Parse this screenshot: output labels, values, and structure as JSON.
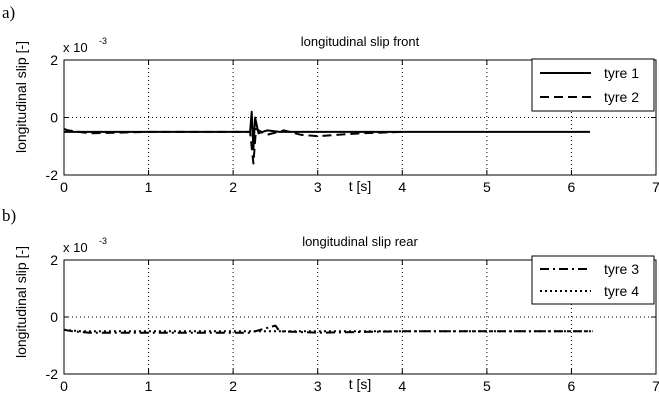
{
  "chart_data": [
    {
      "panel_label": "a)",
      "type": "line",
      "title": "longitudinal slip front",
      "xlabel": "t [s]",
      "ylabel": "longitudinal slip [-]",
      "y_exponent_label": "x 10",
      "y_exponent": "-3",
      "xlim": [
        0,
        7
      ],
      "ylim": [
        -2,
        2
      ],
      "x_ticks": [
        "0",
        "1",
        "2",
        "3",
        "4",
        "5",
        "6",
        "7"
      ],
      "y_ticks": [
        "2",
        "0",
        "-2"
      ],
      "grid": true,
      "legend_position": "top-right",
      "series": [
        {
          "name": "tyre 1",
          "style": "solid",
          "points": [
            [
              0,
              -0.5
            ],
            [
              2.2,
              -0.5
            ],
            [
              2.22,
              0.2
            ],
            [
              2.24,
              -1.1
            ],
            [
              2.26,
              0.0
            ],
            [
              2.3,
              -0.55
            ],
            [
              2.4,
              -0.45
            ],
            [
              2.55,
              -0.5
            ],
            [
              6.22,
              -0.5
            ]
          ]
        },
        {
          "name": "tyre 2",
          "style": "dashed",
          "points": [
            [
              0,
              -0.4
            ],
            [
              0.05,
              -0.45
            ],
            [
              0.3,
              -0.55
            ],
            [
              1.0,
              -0.5
            ],
            [
              2.2,
              -0.5
            ],
            [
              2.24,
              -1.6
            ],
            [
              2.27,
              -0.4
            ],
            [
              2.4,
              -0.6
            ],
            [
              2.6,
              -0.45
            ],
            [
              2.8,
              -0.6
            ],
            [
              3.0,
              -0.65
            ],
            [
              3.5,
              -0.55
            ],
            [
              4.0,
              -0.5
            ]
          ]
        }
      ]
    },
    {
      "panel_label": "b)",
      "type": "line",
      "title": "longitudinal slip rear",
      "xlabel": "t [s]",
      "ylabel": "longitudinal slip [-]",
      "y_exponent_label": "x 10",
      "y_exponent": "-3",
      "xlim": [
        0,
        7
      ],
      "ylim": [
        -2,
        2
      ],
      "x_ticks": [
        "0",
        "1",
        "2",
        "3",
        "4",
        "5",
        "6",
        "7"
      ],
      "y_ticks": [
        "2",
        "0",
        "-2"
      ],
      "grid": true,
      "legend_position": "top-right",
      "series": [
        {
          "name": "tyre 3",
          "style": "dashdot",
          "points": [
            [
              0,
              -0.45
            ],
            [
              0.1,
              -0.5
            ],
            [
              0.3,
              -0.55
            ],
            [
              2.2,
              -0.55
            ],
            [
              2.5,
              -0.3
            ],
            [
              2.55,
              -0.5
            ],
            [
              3.0,
              -0.55
            ],
            [
              4.0,
              -0.5
            ],
            [
              6.25,
              -0.5
            ]
          ]
        },
        {
          "name": "tyre 4",
          "style": "dotted",
          "points": [
            [
              0,
              -0.45
            ],
            [
              0.2,
              -0.5
            ],
            [
              6.25,
              -0.5
            ]
          ]
        }
      ]
    }
  ]
}
